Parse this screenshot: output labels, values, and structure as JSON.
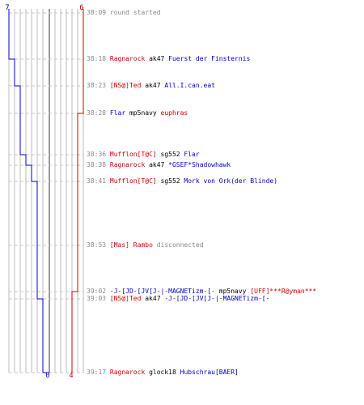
{
  "score": {
    "blue_start": "7",
    "red_start": "6",
    "blue_end": "0",
    "red_end": "4"
  },
  "colors": {
    "red_team": "#cc0000",
    "blue_team": "#0000cc",
    "system": "#888888",
    "weapon": "#000000",
    "grid": "#bbbbbb",
    "dash": "#c8c8c8"
  },
  "events": [
    {
      "time": "38:09",
      "parts": [
        {
          "text": "round started",
          "team": "sys"
        }
      ]
    },
    {
      "time": "38:18",
      "parts": [
        {
          "text": "Ragnarock",
          "team": "red"
        },
        {
          "text": " ak47 ",
          "team": "blk"
        },
        {
          "text": "Fuerst der Finsternis",
          "team": "blue"
        }
      ]
    },
    {
      "time": "38:23",
      "parts": [
        {
          "text": "[NS@]Ted",
          "team": "red"
        },
        {
          "text": " ak47 ",
          "team": "blk"
        },
        {
          "text": "All.I.can.eat",
          "team": "blue"
        }
      ]
    },
    {
      "time": "38:28",
      "parts": [
        {
          "text": "Flar",
          "team": "blue"
        },
        {
          "text": " mp5navy ",
          "team": "blk"
        },
        {
          "text": "euphras",
          "team": "red"
        }
      ]
    },
    {
      "time": "38:36",
      "parts": [
        {
          "text": "Mufflon[T@C]",
          "team": "red"
        },
        {
          "text": " sg552 ",
          "team": "blk"
        },
        {
          "text": "Flar",
          "team": "blue"
        }
      ]
    },
    {
      "time": "38:38",
      "parts": [
        {
          "text": "Ragnarock",
          "team": "red"
        },
        {
          "text": " ak47 ",
          "team": "blk"
        },
        {
          "text": "*GSEF*Shadowhawk",
          "team": "blue"
        }
      ]
    },
    {
      "time": "38:41",
      "parts": [
        {
          "text": "Mufflon[T@C]",
          "team": "red"
        },
        {
          "text": " sg552 ",
          "team": "blk"
        },
        {
          "text": "Mork von Ork(der Blinde)",
          "team": "blue"
        }
      ]
    },
    {
      "time": "38:53",
      "parts": [
        {
          "text": "[Mas] Rambo",
          "team": "red"
        },
        {
          "text": " disconnected",
          "team": "sys"
        }
      ]
    },
    {
      "time": "39:02",
      "parts": [
        {
          "text": "-J-[JD-[JV[J-|-MAGNETizm-[-",
          "team": "blue"
        },
        {
          "text": " mp5navy ",
          "team": "blk"
        },
        {
          "text": "[UFF]***R@yman***",
          "team": "red"
        }
      ]
    },
    {
      "time": "39:03",
      "parts": [
        {
          "text": "[NS@]Ted",
          "team": "red"
        },
        {
          "text": " ak47 ",
          "team": "blk"
        },
        {
          "text": "-J-[JD-[JV[J-|-MAGNETizm-[-",
          "team": "blue"
        }
      ]
    },
    {
      "time": "39:17",
      "parts": [
        {
          "text": "Ragnarock",
          "team": "red"
        },
        {
          "text": " glock18 ",
          "team": "blk"
        },
        {
          "text": "Hubschrau[BAER]",
          "team": "blue"
        }
      ]
    }
  ]
}
